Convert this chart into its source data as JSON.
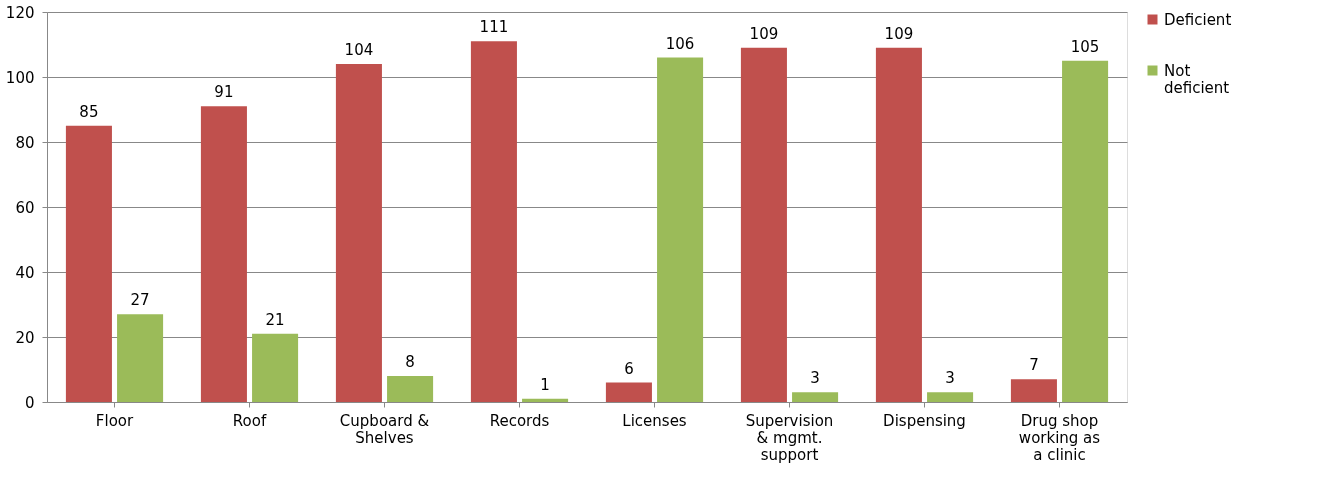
{
  "chart_data": {
    "type": "bar",
    "categories": [
      "Floor",
      "Roof",
      "Cupboard & Shelves",
      "Records",
      "Licenses",
      "Supervision & mgmt. support",
      "Dispensing",
      "Drug shop working as a clinic"
    ],
    "series": [
      {
        "name": "Deficient",
        "color": "#c0504d",
        "values": [
          85,
          91,
          104,
          111,
          6,
          109,
          109,
          7
        ]
      },
      {
        "name": "Not deficient",
        "color": "#9bbb59",
        "values": [
          27,
          21,
          8,
          1,
          106,
          3,
          3,
          105
        ]
      }
    ],
    "ylim": [
      0,
      120
    ],
    "yticks": [
      0,
      20,
      40,
      60,
      80,
      100,
      120
    ],
    "grid": "y",
    "legend": "right",
    "data_labels": true
  }
}
